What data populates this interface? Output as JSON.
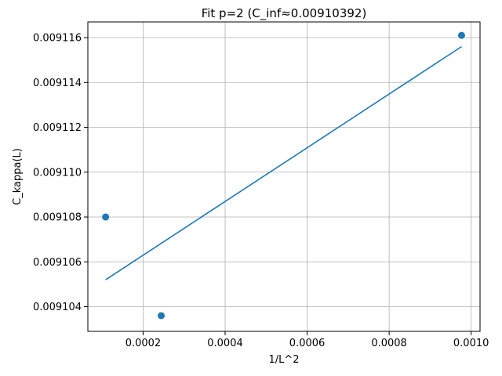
{
  "chart_data": {
    "type": "scatter",
    "title": "Fit p=2 (C_inf≈0.00910392)",
    "xlabel": "1/L^2",
    "ylabel": "C_kappa(L)",
    "xlim": [
      6.52e-05,
      0.0010217
    ],
    "ylim": [
      0.0091029,
      0.0091167
    ],
    "grid": true,
    "color": "#1f77b4",
    "x_ticks": [
      {
        "value": 0.0002,
        "label": "0.0002"
      },
      {
        "value": 0.0004,
        "label": "0.0004"
      },
      {
        "value": 0.0006,
        "label": "0.0006"
      },
      {
        "value": 0.0008,
        "label": "0.0008"
      },
      {
        "value": 0.001,
        "label": "0.0010"
      }
    ],
    "y_ticks": [
      {
        "value": 0.009104,
        "label": "0.009104"
      },
      {
        "value": 0.009106,
        "label": "0.009106"
      },
      {
        "value": 0.009108,
        "label": "0.009108"
      },
      {
        "value": 0.00911,
        "label": "0.009110"
      },
      {
        "value": 0.009112,
        "label": "0.009112"
      },
      {
        "value": 0.009114,
        "label": "0.009114"
      },
      {
        "value": 0.009116,
        "label": "0.009116"
      }
    ],
    "points": [
      {
        "x": 0.0001085,
        "y": 0.009108
      },
      {
        "x": 0.0002441,
        "y": 0.0091036
      },
      {
        "x": 0.0009766,
        "y": 0.0091161
      }
    ],
    "fit_line": [
      {
        "x": 0.0001085,
        "y": 0.0091052
      },
      {
        "x": 0.0009766,
        "y": 0.0091156
      }
    ]
  }
}
